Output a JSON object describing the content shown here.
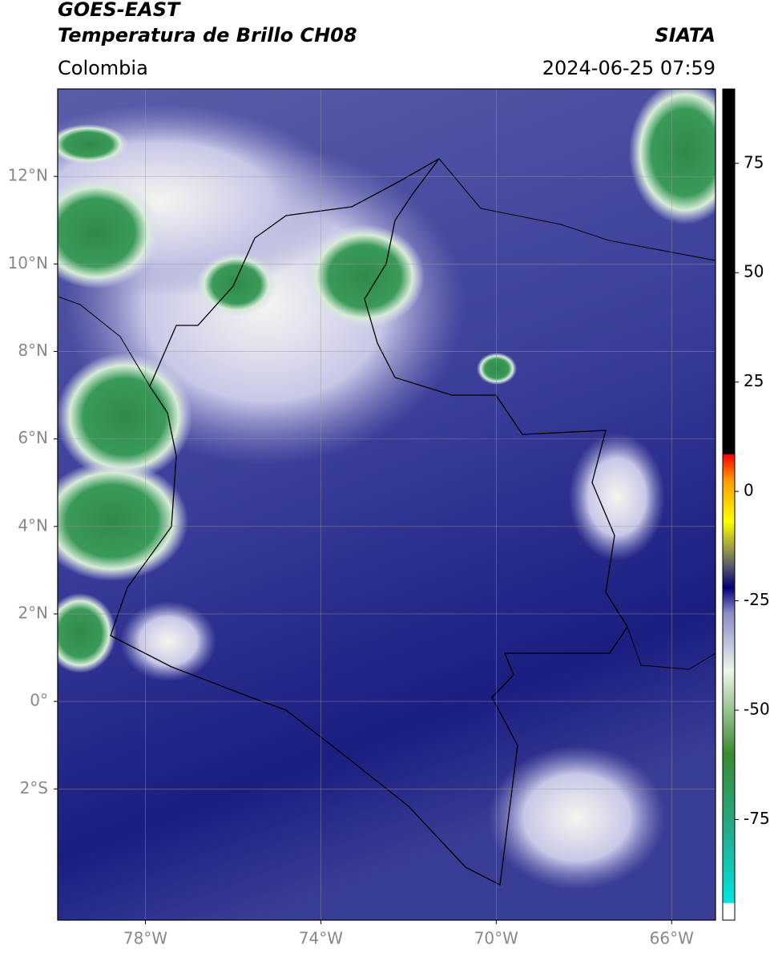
{
  "header": {
    "title": "GOES-EAST",
    "subtitle": "Temperatura de Brillo CH08",
    "source": "SIATA",
    "region": "Colombia",
    "datetime": "2024-06-25 07:59"
  },
  "map": {
    "lonlim": [
      -80,
      -65
    ],
    "latlim": [
      -5,
      14
    ],
    "grid": true,
    "xticks": [
      {
        "value": -78,
        "label": "78°W"
      },
      {
        "value": -74,
        "label": "74°W"
      },
      {
        "value": -70,
        "label": "70°W"
      },
      {
        "value": -66,
        "label": "66°W"
      }
    ],
    "yticks": [
      {
        "value": 12,
        "label": "12°N"
      },
      {
        "value": 10,
        "label": "10°N"
      },
      {
        "value": 8,
        "label": "8°N"
      },
      {
        "value": 6,
        "label": "6°N"
      },
      {
        "value": 4,
        "label": "4°N"
      },
      {
        "value": 2,
        "label": "2°N"
      },
      {
        "value": 0,
        "label": "0°"
      },
      {
        "value": -2,
        "label": "2°S"
      }
    ]
  },
  "colorbar": {
    "lim": [
      -98,
      92
    ],
    "ticks": [
      75,
      50,
      25,
      0,
      -25,
      -50,
      -75
    ]
  }
}
